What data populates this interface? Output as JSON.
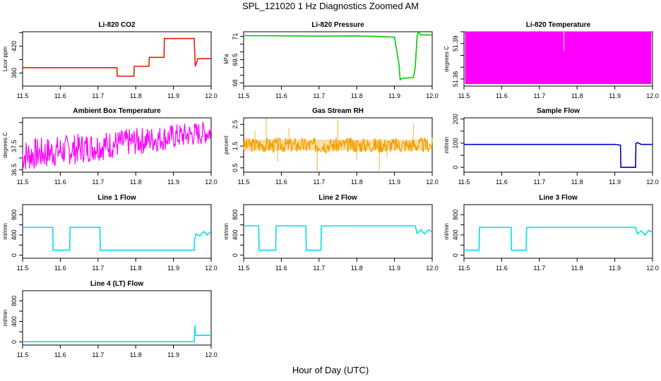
{
  "figure": {
    "title": "SPL_121020  1 Hz Diagnostics Zoomed AM",
    "xlabel": "Hour of Day (UTC)"
  },
  "chart_data": [
    {
      "type": "line",
      "title": "Li-820 CO2",
      "ylabel": "Licor ppm",
      "color": "#e02000",
      "xlim": [
        11.5,
        12.0
      ],
      "ylim": [
        331,
        452
      ],
      "yticks": [
        360,
        420
      ],
      "yminor": [
        330,
        390,
        450
      ],
      "series": [
        {
          "x": [
            11.5,
            11.75,
            11.751,
            11.795,
            11.796,
            11.835,
            11.836,
            11.875,
            11.876,
            11.955,
            11.958,
            11.965,
            11.97,
            12.0
          ],
          "y": [
            372,
            372,
            353,
            353,
            375,
            375,
            395,
            395,
            437,
            437,
            375,
            392,
            392,
            392
          ]
        }
      ]
    },
    {
      "type": "line",
      "title": "Li-820 Pressure",
      "ylabel": "kPa",
      "color": "#00cc00",
      "xlim": [
        11.5,
        12.0
      ],
      "ylim": [
        67.8,
        71.3
      ],
      "yticks": [
        68.0,
        69.5,
        71.0
      ],
      "yminor": [
        68.5,
        69.0,
        70.0,
        70.5
      ],
      "series": [
        {
          "x": [
            11.5,
            11.7,
            11.8,
            11.85,
            11.9,
            11.912,
            11.915,
            11.92,
            11.95,
            11.955,
            11.96,
            11.963,
            11.97,
            12.0
          ],
          "y": [
            71.05,
            71.02,
            71.03,
            71.0,
            70.95,
            69.2,
            68.2,
            68.3,
            68.35,
            69.0,
            71.0,
            71.3,
            71.1,
            71.1
          ]
        }
      ]
    },
    {
      "type": "line",
      "title": "Li-820 Temperature",
      "ylabel": "degrees C",
      "color": "#ff00ff",
      "xlim": [
        11.5,
        12.0
      ],
      "ylim": [
        51.354,
        51.4
      ],
      "yticks": [
        51.36,
        51.39
      ],
      "yminor": [
        51.37,
        51.38,
        51.4
      ],
      "band": {
        "from": 51.356,
        "to": 51.4
      },
      "spike": {
        "x": 11.765,
        "to": 51.384
      },
      "series": [
        {
          "x": [
            11.5,
            12.0
          ],
          "y": [
            51.356,
            51.4
          ]
        }
      ]
    },
    {
      "type": "line",
      "title": "Ambient Box Temperature",
      "ylabel": "degrees C",
      "color": "#ff00ff",
      "xlim": [
        11.5,
        12.0
      ],
      "ylim": [
        36.4,
        38.7
      ],
      "yticks": [
        36.5,
        37.5
      ],
      "yminor": [
        37.0,
        38.0,
        38.5
      ],
      "noise": {
        "type": "trend",
        "lo_start": 36.4,
        "lo_end": 37.6,
        "hi_start": 37.8,
        "hi_end": 38.6,
        "seed": 7
      },
      "series": [
        {
          "x": [
            11.5,
            12.0
          ],
          "y": [
            37.1,
            38.0
          ]
        }
      ]
    },
    {
      "type": "line",
      "title": "Gas Stream RH",
      "ylabel": "percent",
      "color": "#f0a000",
      "xlim": [
        11.5,
        12.0
      ],
      "ylim": [
        0.3,
        2.8
      ],
      "yticks": [
        0.5,
        1.5,
        2.5
      ],
      "yminor": [
        1.0,
        2.0
      ],
      "noise": {
        "type": "band",
        "lo": 1.2,
        "hi": 1.9,
        "seed": 3
      },
      "spikes": [
        {
          "x": 11.53,
          "y": 2.2
        },
        {
          "x": 11.56,
          "y": 2.8
        },
        {
          "x": 11.62,
          "y": 2.3
        },
        {
          "x": 11.75,
          "y": 2.7
        },
        {
          "x": 11.59,
          "y": 0.8
        },
        {
          "x": 11.695,
          "y": 0.35
        },
        {
          "x": 11.86,
          "y": 0.4
        },
        {
          "x": 11.95,
          "y": 2.5
        },
        {
          "x": 11.88,
          "y": 1.0
        },
        {
          "x": 11.8,
          "y": 0.85
        }
      ],
      "series": [
        {
          "x": [
            11.5,
            12.0
          ],
          "y": [
            1.55,
            1.55
          ]
        }
      ]
    },
    {
      "type": "line",
      "title": "Sample Flow",
      "ylabel": "ml/min",
      "color": "#0000cc",
      "xlim": [
        11.5,
        12.0
      ],
      "ylim": [
        -20,
        205
      ],
      "yticks": [
        0,
        100,
        200
      ],
      "yminor": [
        50,
        150
      ],
      "series": [
        {
          "x": [
            11.5,
            11.9,
            11.915,
            11.916,
            11.955,
            11.956,
            11.96,
            11.97,
            12.0
          ],
          "y": [
            95,
            95,
            92,
            0,
            0,
            100,
            102,
            95,
            95
          ]
        }
      ]
    },
    {
      "type": "line",
      "title": "Line 1 Flow",
      "ylabel": "ml/min",
      "color": "#00e0e8",
      "xlim": [
        11.5,
        12.0
      ],
      "ylim": [
        -60,
        1000
      ],
      "yticks": [
        0,
        400,
        800
      ],
      "yminor": [
        200,
        600
      ],
      "series": [
        {
          "x": [
            11.5,
            11.58,
            11.581,
            11.625,
            11.626,
            11.705,
            11.706,
            11.955,
            11.956,
            11.96,
            11.97,
            11.98,
            11.99,
            12.0
          ],
          "y": [
            550,
            550,
            100,
            100,
            550,
            550,
            100,
            100,
            300,
            420,
            380,
            470,
            400,
            480
          ]
        }
      ]
    },
    {
      "type": "line",
      "title": "Line 2 Flow",
      "ylabel": "ml/min",
      "color": "#00e0e8",
      "xlim": [
        11.5,
        12.0
      ],
      "ylim": [
        -60,
        1000
      ],
      "yticks": [
        0,
        400,
        800
      ],
      "yminor": [
        200,
        600
      ],
      "series": [
        {
          "x": [
            11.5,
            11.54,
            11.541,
            11.585,
            11.586,
            11.665,
            11.666,
            11.705,
            11.706,
            11.955,
            11.96,
            11.97,
            11.98,
            11.99,
            12.0
          ],
          "y": [
            580,
            580,
            100,
            100,
            580,
            580,
            100,
            100,
            580,
            580,
            430,
            500,
            420,
            500,
            460
          ]
        }
      ]
    },
    {
      "type": "line",
      "title": "Line 3 Flow",
      "ylabel": "ml/min",
      "color": "#00e0e8",
      "xlim": [
        11.5,
        12.0
      ],
      "ylim": [
        -60,
        1000
      ],
      "yticks": [
        0,
        400,
        800
      ],
      "yminor": [
        200,
        600
      ],
      "series": [
        {
          "x": [
            11.5,
            11.54,
            11.541,
            11.625,
            11.626,
            11.665,
            11.666,
            11.955,
            11.96,
            11.97,
            11.98,
            11.99,
            12.0
          ],
          "y": [
            100,
            100,
            550,
            550,
            100,
            100,
            550,
            550,
            420,
            480,
            400,
            490,
            450
          ]
        }
      ]
    },
    {
      "type": "line",
      "title": "Line 4 (LT) Flow",
      "ylabel": "ml/min",
      "color": "#00e0e8",
      "xlim": [
        11.5,
        12.0
      ],
      "ylim": [
        -60,
        1000
      ],
      "yticks": [
        0,
        400,
        800
      ],
      "yminor": [
        200,
        600
      ],
      "series": [
        {
          "x": [
            11.5,
            11.955,
            11.957,
            11.958,
            11.96,
            12.0
          ],
          "y": [
            5,
            5,
            320,
            130,
            130,
            130
          ]
        }
      ]
    }
  ],
  "xaxis": {
    "ticks": [
      11.5,
      11.6,
      11.7,
      11.8,
      11.9,
      12.0
    ],
    "ticklabels": [
      "11.5",
      "11.6",
      "11.7",
      "11.8",
      "11.9",
      "12.0"
    ]
  }
}
